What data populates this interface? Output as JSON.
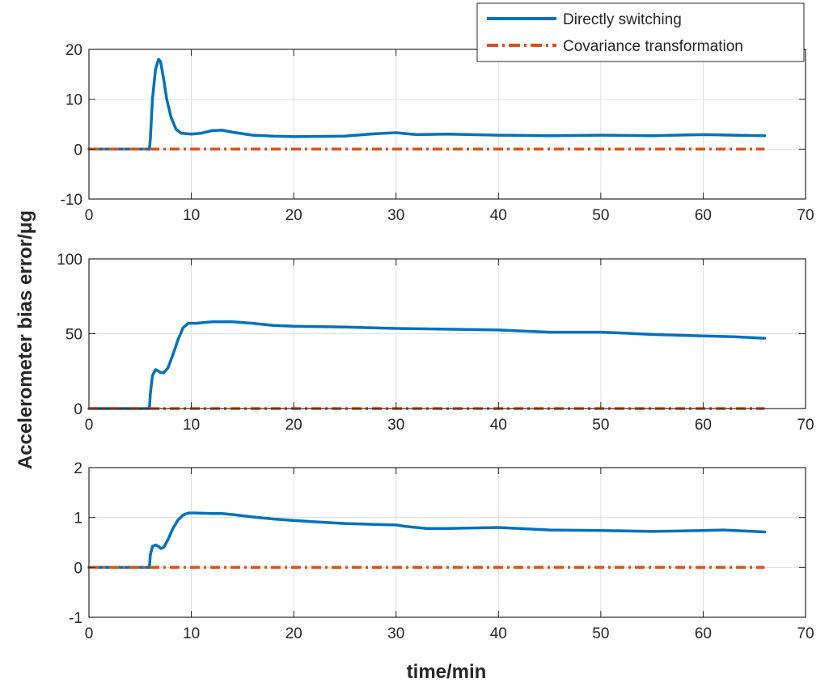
{
  "figure": {
    "ylabel": "Accelerometer bias error/μg",
    "xlabel": "time/min"
  },
  "legend": {
    "placement": "top-right",
    "entries": [
      {
        "label": "Directly switching",
        "color": "#0072BD",
        "style": "solid"
      },
      {
        "label": "Covariance transformation",
        "color": "#D95319",
        "style": "dashdot"
      }
    ]
  },
  "chart_data": [
    {
      "type": "line",
      "xlim": [
        0,
        70
      ],
      "ylim": [
        -10,
        20
      ],
      "xticks": [
        0,
        10,
        20,
        30,
        40,
        50,
        60,
        70
      ],
      "yticks": [
        -10,
        0,
        10,
        20
      ],
      "grid": true,
      "series": [
        {
          "name": "Directly switching",
          "color": "#0072BD",
          "style": "solid",
          "x": [
            0,
            5.9,
            6.0,
            6.2,
            6.5,
            6.8,
            7.0,
            7.3,
            7.6,
            8.0,
            8.5,
            9.0,
            10,
            11,
            12,
            13,
            14,
            16,
            18,
            20,
            25,
            28,
            30,
            32,
            35,
            40,
            45,
            50,
            55,
            60,
            63,
            66
          ],
          "y": [
            0,
            0,
            2,
            10,
            16,
            18,
            17.5,
            14,
            10,
            6.5,
            4,
            3.2,
            3,
            3.2,
            3.7,
            3.8,
            3.4,
            2.8,
            2.6,
            2.5,
            2.6,
            3.1,
            3.3,
            2.9,
            3,
            2.8,
            2.7,
            2.8,
            2.7,
            2.9,
            2.8,
            2.7
          ]
        },
        {
          "name": "Covariance transformation",
          "color": "#D95319",
          "style": "dashdot",
          "x": [
            0,
            66
          ],
          "y": [
            0,
            0
          ]
        }
      ]
    },
    {
      "type": "line",
      "xlim": [
        0,
        70
      ],
      "ylim": [
        0,
        100
      ],
      "xticks": [
        0,
        10,
        20,
        30,
        40,
        50,
        60,
        70
      ],
      "yticks": [
        0,
        50,
        100
      ],
      "grid": true,
      "series": [
        {
          "name": "Directly switching",
          "color": "#0072BD",
          "style": "solid",
          "x": [
            0,
            5.9,
            6.0,
            6.2,
            6.5,
            6.8,
            7.0,
            7.3,
            7.7,
            8.2,
            8.7,
            9.2,
            9.7,
            10.5,
            12,
            13,
            14,
            16,
            18,
            20,
            25,
            30,
            35,
            40,
            45,
            50,
            52,
            55,
            60,
            63,
            66
          ],
          "y": [
            0,
            0,
            10,
            22,
            26,
            25,
            24,
            24,
            27,
            36,
            46,
            54,
            57,
            57,
            58,
            58,
            58,
            57,
            55.5,
            55,
            54.5,
            53.5,
            53,
            52.5,
            51,
            51,
            50.5,
            49.5,
            48.5,
            48,
            47
          ]
        },
        {
          "name": "Covariance transformation",
          "color": "#D95319",
          "style": "dashdot",
          "x": [
            0,
            66
          ],
          "y": [
            0,
            0
          ]
        }
      ]
    },
    {
      "type": "line",
      "xlim": [
        0,
        70
      ],
      "ylim": [
        -1,
        2
      ],
      "xticks": [
        0,
        10,
        20,
        30,
        40,
        50,
        60,
        70
      ],
      "yticks": [
        -1,
        0,
        1,
        2
      ],
      "grid": true,
      "series": [
        {
          "name": "Directly switching",
          "color": "#0072BD",
          "style": "solid",
          "x": [
            0,
            5.9,
            6.0,
            6.2,
            6.5,
            6.8,
            7.0,
            7.3,
            7.7,
            8.2,
            8.7,
            9.2,
            9.7,
            10.5,
            12,
            13,
            14,
            16,
            18,
            20,
            25,
            28,
            30,
            31,
            33,
            35,
            40,
            45,
            50,
            55,
            58,
            60,
            62,
            66
          ],
          "y": [
            0,
            0,
            0.25,
            0.42,
            0.45,
            0.42,
            0.38,
            0.4,
            0.55,
            0.78,
            0.95,
            1.05,
            1.09,
            1.09,
            1.08,
            1.08,
            1.06,
            1.01,
            0.97,
            0.94,
            0.88,
            0.86,
            0.85,
            0.82,
            0.78,
            0.78,
            0.8,
            0.75,
            0.74,
            0.72,
            0.73,
            0.74,
            0.75,
            0.71
          ]
        },
        {
          "name": "Covariance transformation",
          "color": "#D95319",
          "style": "dashdot",
          "x": [
            0,
            66
          ],
          "y": [
            0,
            0
          ]
        }
      ]
    }
  ]
}
